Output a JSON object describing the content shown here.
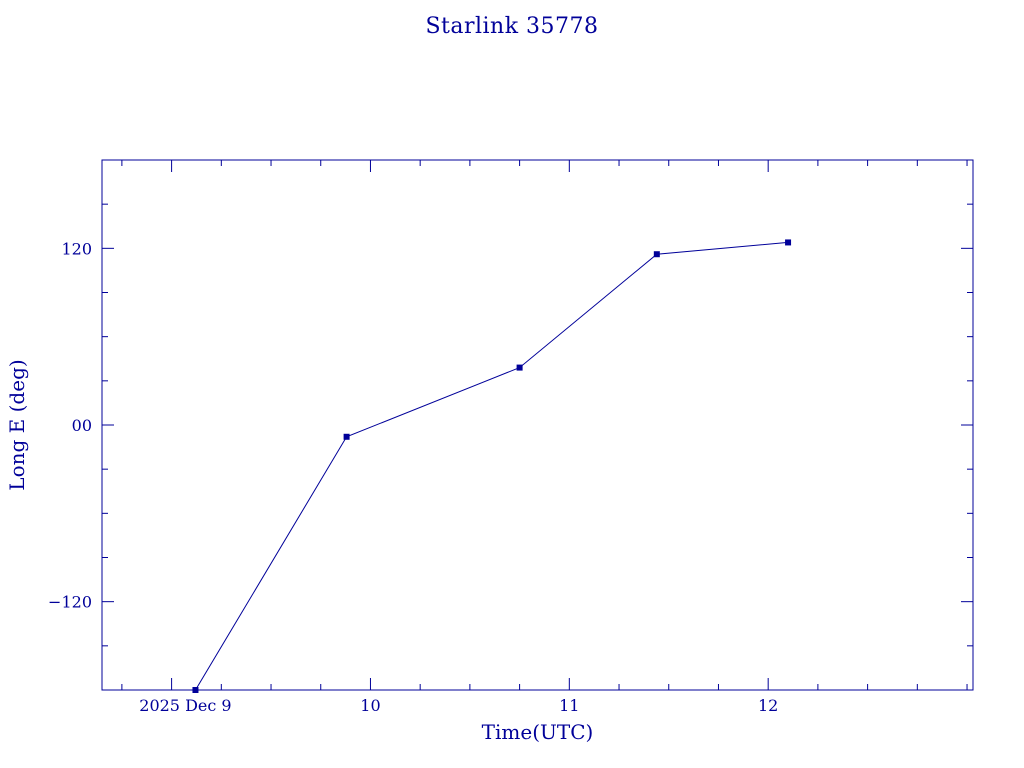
{
  "colors": {
    "ink": "#000099",
    "background": "#ffffff"
  },
  "chart_data": {
    "type": "line",
    "title": "Starlink 35778",
    "xlabel": "Time(UTC)",
    "ylabel": "Long E (deg)",
    "xlim": [
      8.2,
      12.58
    ],
    "ylim": [
      -180,
      180
    ],
    "x_ticks": [
      {
        "value": 8.55,
        "label": "2025 Dec  9"
      },
      {
        "value": 9.55,
        "label": "10"
      },
      {
        "value": 10.55,
        "label": "11"
      },
      {
        "value": 11.55,
        "label": "12"
      }
    ],
    "y_ticks": [
      {
        "value": -120,
        "label": "−120"
      },
      {
        "value": 0,
        "label": "00"
      },
      {
        "value": 120,
        "label": "120"
      }
    ],
    "x_minor_step": 0.25,
    "y_minor_step": 30,
    "grid": false,
    "series": [
      {
        "x": [
          8.67,
          9.43,
          10.3,
          10.99,
          11.65
        ],
        "y": [
          -180,
          -8,
          39,
          116,
          124
        ]
      }
    ]
  }
}
